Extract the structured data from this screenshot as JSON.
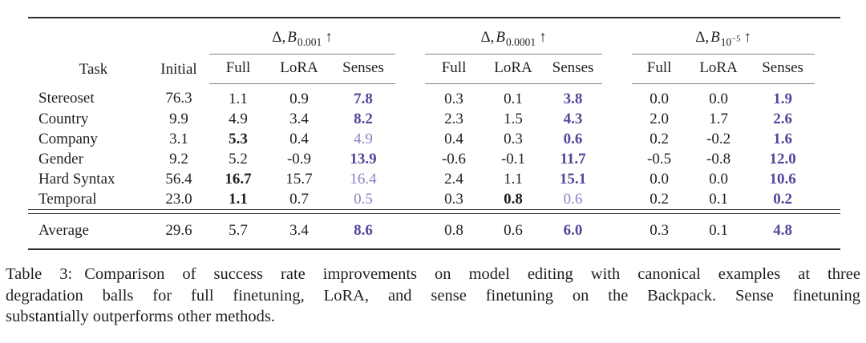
{
  "colors": {
    "text": "#1f1f1f",
    "accent_bold": "#54459a",
    "accent_light": "#8c81c4",
    "rule_dark": "#2e2e2e",
    "rule_gray": "#828282"
  },
  "table": {
    "col_task": "Task",
    "col_initial": "Initial",
    "groups": [
      {
        "prefix": "Δ,",
        "variable": "B",
        "subscript": "0.001",
        "subsuperscript": "",
        "arrow": "↑",
        "subcols": [
          "Full",
          "LoRA",
          "Senses"
        ]
      },
      {
        "prefix": "Δ,",
        "variable": "B",
        "subscript": "0.0001",
        "subsuperscript": "",
        "arrow": "↑",
        "subcols": [
          "Full",
          "LoRA",
          "Senses"
        ]
      },
      {
        "prefix": "Δ,",
        "variable": "B",
        "subscript": "10",
        "subsuperscript": "−5",
        "arrow": "↑",
        "subcols": [
          "Full",
          "LoRA",
          "Senses"
        ]
      }
    ],
    "rows": [
      {
        "task": "Stereoset",
        "initial": "76.3",
        "cells": [
          {
            "v": "1.1",
            "s": "n"
          },
          {
            "v": "0.9",
            "s": "n"
          },
          {
            "v": "7.8",
            "s": "pb"
          },
          {
            "v": "0.3",
            "s": "n"
          },
          {
            "v": "0.1",
            "s": "n"
          },
          {
            "v": "3.8",
            "s": "pb"
          },
          {
            "v": "0.0",
            "s": "n"
          },
          {
            "v": "0.0",
            "s": "n"
          },
          {
            "v": "1.9",
            "s": "pb"
          }
        ]
      },
      {
        "task": "Country",
        "initial": "9.9",
        "cells": [
          {
            "v": "4.9",
            "s": "n"
          },
          {
            "v": "3.4",
            "s": "n"
          },
          {
            "v": "8.2",
            "s": "pb"
          },
          {
            "v": "2.3",
            "s": "n"
          },
          {
            "v": "1.5",
            "s": "n"
          },
          {
            "v": "4.3",
            "s": "pb"
          },
          {
            "v": "2.0",
            "s": "n"
          },
          {
            "v": "1.7",
            "s": "n"
          },
          {
            "v": "2.6",
            "s": "pb"
          }
        ]
      },
      {
        "task": "Company",
        "initial": "3.1",
        "cells": [
          {
            "v": "5.3",
            "s": "b"
          },
          {
            "v": "0.4",
            "s": "n"
          },
          {
            "v": "4.9",
            "s": "p"
          },
          {
            "v": "0.4",
            "s": "n"
          },
          {
            "v": "0.3",
            "s": "n"
          },
          {
            "v": "0.6",
            "s": "pb"
          },
          {
            "v": "0.2",
            "s": "n"
          },
          {
            "v": "-0.2",
            "s": "n"
          },
          {
            "v": "1.6",
            "s": "pb"
          }
        ]
      },
      {
        "task": "Gender",
        "initial": "9.2",
        "cells": [
          {
            "v": "5.2",
            "s": "n"
          },
          {
            "v": "-0.9",
            "s": "n"
          },
          {
            "v": "13.9",
            "s": "pb"
          },
          {
            "v": "-0.6",
            "s": "n"
          },
          {
            "v": "-0.1",
            "s": "n"
          },
          {
            "v": "11.7",
            "s": "pb"
          },
          {
            "v": "-0.5",
            "s": "n"
          },
          {
            "v": "-0.8",
            "s": "n"
          },
          {
            "v": "12.0",
            "s": "pb"
          }
        ]
      },
      {
        "task": "Hard Syntax",
        "initial": "56.4",
        "cells": [
          {
            "v": "16.7",
            "s": "b"
          },
          {
            "v": "15.7",
            "s": "n"
          },
          {
            "v": "16.4",
            "s": "p"
          },
          {
            "v": "2.4",
            "s": "n"
          },
          {
            "v": "1.1",
            "s": "n"
          },
          {
            "v": "15.1",
            "s": "pb"
          },
          {
            "v": "0.0",
            "s": "n"
          },
          {
            "v": "0.0",
            "s": "n"
          },
          {
            "v": "10.6",
            "s": "pb"
          }
        ]
      },
      {
        "task": "Temporal",
        "initial": "23.0",
        "cells": [
          {
            "v": "1.1",
            "s": "b"
          },
          {
            "v": "0.7",
            "s": "n"
          },
          {
            "v": "0.5",
            "s": "p"
          },
          {
            "v": "0.3",
            "s": "n"
          },
          {
            "v": "0.8",
            "s": "b"
          },
          {
            "v": "0.6",
            "s": "p"
          },
          {
            "v": "0.2",
            "s": "n"
          },
          {
            "v": "0.1",
            "s": "n"
          },
          {
            "v": "0.2",
            "s": "pb"
          }
        ]
      }
    ],
    "average": {
      "task": "Average",
      "initial": "29.6",
      "cells": [
        {
          "v": "5.7",
          "s": "n"
        },
        {
          "v": "3.4",
          "s": "n"
        },
        {
          "v": "8.6",
          "s": "pb"
        },
        {
          "v": "0.8",
          "s": "n"
        },
        {
          "v": "0.6",
          "s": "n"
        },
        {
          "v": "6.0",
          "s": "pb"
        },
        {
          "v": "0.3",
          "s": "n"
        },
        {
          "v": "0.1",
          "s": "n"
        },
        {
          "v": "4.8",
          "s": "pb"
        }
      ]
    }
  },
  "caption": {
    "label": "Table 3:",
    "line1": "Comparison of success rate improvements on model editing with canonical examples at three",
    "line2": "degradation balls for full finetuning, LoRA, and sense finetuning on the Backpack. Sense finetuning",
    "line3": "substantially outperforms other methods."
  }
}
